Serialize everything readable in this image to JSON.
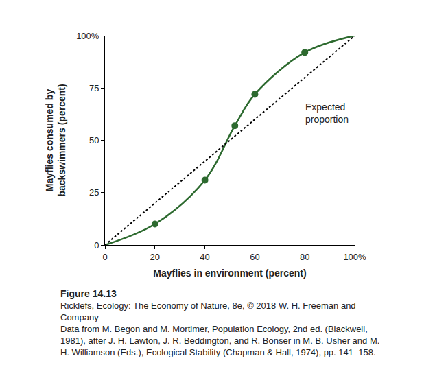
{
  "chart_data": {
    "type": "line",
    "x_label": "Mayflies in environment (percent)",
    "y_label": "Mayflies consumed by backswimmers (percent)",
    "series": [
      {
        "type": "line",
        "x": [
          0,
          20,
          40,
          52,
          60,
          80,
          100
        ],
        "values": [
          0,
          10,
          31,
          57,
          72,
          92,
          100
        ],
        "color": "#2d6a2f",
        "line_style": "solid"
      },
      {
        "type": "scatter",
        "x": [
          20,
          40,
          52,
          60,
          80
        ],
        "values": [
          10,
          31,
          57,
          72,
          92
        ],
        "color": "#2d6a2f",
        "marker": "circle"
      },
      {
        "type": "line",
        "name": "Expected proportion",
        "x": [
          0,
          100
        ],
        "values": [
          0,
          100
        ],
        "color": "#000000",
        "line_style": "dot"
      }
    ],
    "xlim": [
      0,
      100
    ],
    "xticks": [
      0,
      20,
      40,
      60,
      80,
      {
        "value": 100,
        "label": "100%"
      }
    ],
    "ylim": [
      0,
      100
    ],
    "yticks": [
      0,
      25,
      50,
      75,
      {
        "value": 100,
        "label": "100%"
      }
    ],
    "grid": false,
    "annotations": [
      {
        "text": "Expected proportion",
        "x": 89,
        "y": 63
      }
    ],
    "caption": {
      "label": "Figure 14.13",
      "source": "Ricklefs, Ecology: The Economy of Nature, 8e, © 2018 W. H. Freeman and Company",
      "data_from": "Data from M. Begon and M. Mortimer, Population Ecology, 2nd ed. (Blackwell, 1981), after J. H. Lawton, J. R. Beddington, and R. Bonser in M. B. Usher and M. H. Williamson (Eds.), Ecological Stability (Chapman & Hall, 1974), pp. 141–158."
    }
  }
}
